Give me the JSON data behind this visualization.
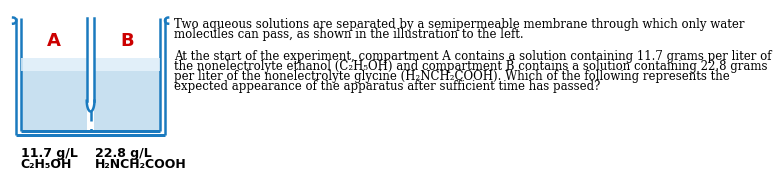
{
  "bg_color": "#ffffff",
  "container_color": "#1a7abf",
  "water_color": "#c8e0f0",
  "water_color_top": "#e8f4fc",
  "label_A": "A",
  "label_B": "B",
  "label_color": "#cc0000",
  "dashed_color": "#1a7abf",
  "text_color": "#000000",
  "line1_p1": "Two aqueous solutions are separated by a semipermeable membrane through which only water",
  "line1_p2": "molecules can pass, as shown in the illustration to the left.",
  "line2_p1": "At the start of the experiment, compartment A contains a solution containing 11.7 grams per liter of",
  "line2_p2": "the nonelectrolyte ethanol (C₂H₅OH) and compartment B contains a solution containing 22.8 grams",
  "line2_p3": "per liter of the nonelectrolyte glycine (H₂NCH₂COOH). Which of the following represents the",
  "line2_p4": "expected appearance of the apparatus after sufficient time has passed?",
  "bl1": "11.7 g/L",
  "bl2": "C₂H₅OH",
  "br1": "22.8 g/L",
  "br2": "H₂NCH₂COOH",
  "font_size_body": 8.5,
  "font_size_label": 13,
  "font_size_bottom": 9
}
